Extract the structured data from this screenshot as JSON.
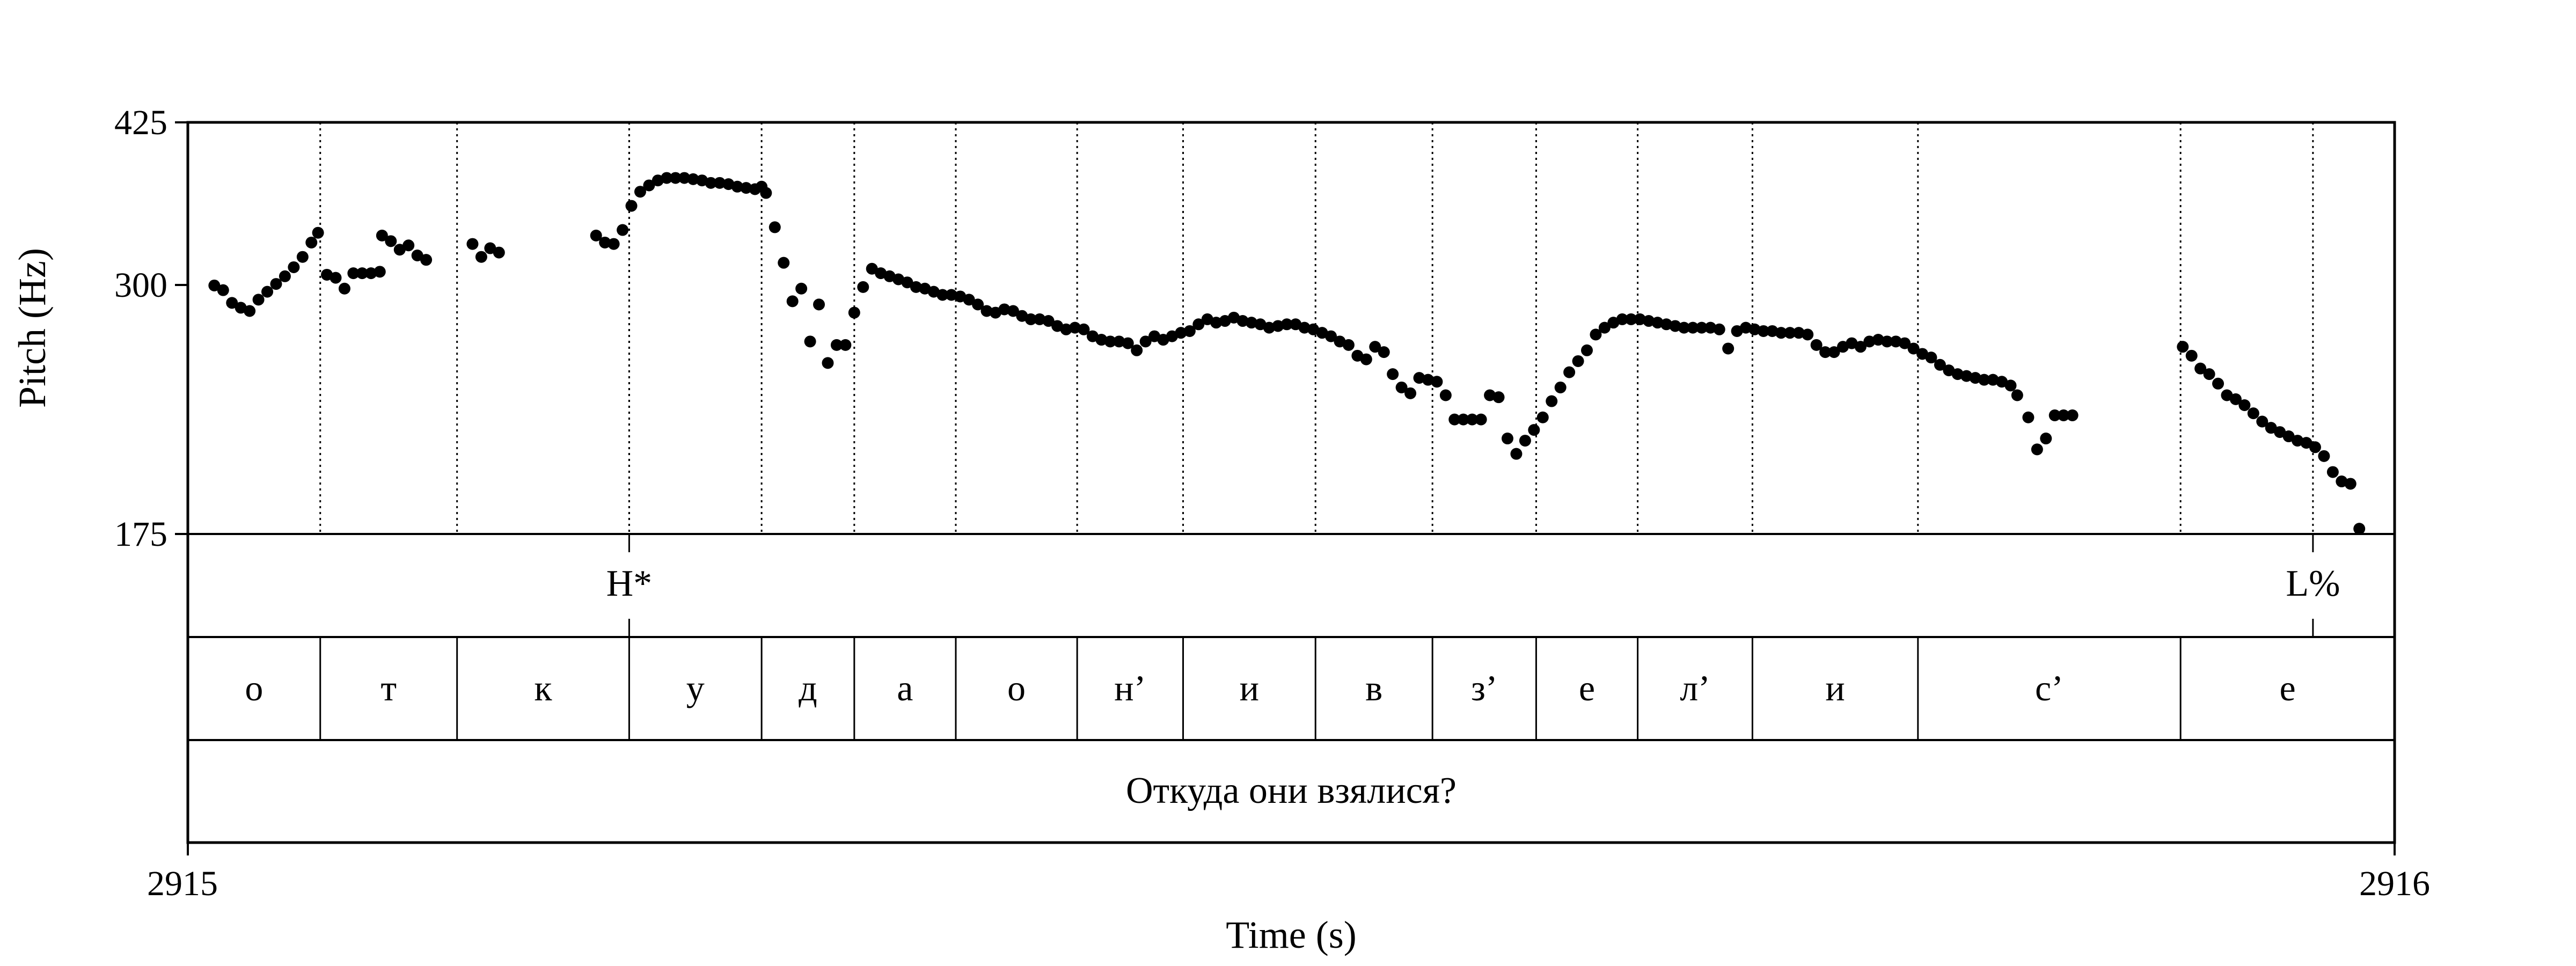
{
  "chart_data": {
    "type": "scatter",
    "title": "",
    "xlabel": "Time (s)",
    "ylabel": "Pitch (Hz)",
    "xlim": [
      2915,
      2916
    ],
    "ylim": [
      175,
      425
    ],
    "x_ticks": [
      "2915",
      "2916"
    ],
    "y_ticks": [
      {
        "value": 175,
        "label": "175"
      },
      {
        "value": 300,
        "label": "300"
      },
      {
        "value": 425,
        "label": "425"
      }
    ],
    "grid": false,
    "tone_tier": [
      {
        "time": 0.2,
        "label": "H*"
      },
      {
        "time": 0.963,
        "label": "L%"
      }
    ],
    "segment_boundaries": [
      0.06,
      0.122,
      0.2,
      0.26,
      0.302,
      0.348,
      0.403,
      0.451,
      0.511,
      0.564,
      0.611,
      0.657,
      0.709,
      0.784,
      0.903
    ],
    "segment_tier": [
      "о",
      "т",
      "к",
      "у",
      "д",
      "а",
      "о",
      "н’",
      "и",
      "в",
      "з’",
      "е",
      "л’",
      "и",
      "с’",
      "е"
    ],
    "phrase_tier": [
      "Откуда они взялися?"
    ],
    "colors": {
      "points": "#000000",
      "lines": "#000000"
    },
    "pitch_points": [
      [
        0.012,
        299
      ],
      [
        0.016,
        296
      ],
      [
        0.02,
        288
      ],
      [
        0.024,
        285
      ],
      [
        0.028,
        283
      ],
      [
        0.032,
        290
      ],
      [
        0.036,
        295
      ],
      [
        0.04,
        300
      ],
      [
        0.044,
        305
      ],
      [
        0.048,
        311
      ],
      [
        0.052,
        318
      ],
      [
        0.056,
        328
      ],
      [
        0.059,
        335
      ],
      [
        0.063,
        306
      ],
      [
        0.067,
        304
      ],
      [
        0.071,
        297
      ],
      [
        0.075,
        307
      ],
      [
        0.079,
        307
      ],
      [
        0.083,
        307
      ],
      [
        0.087,
        308
      ],
      [
        0.088,
        333
      ],
      [
        0.092,
        329
      ],
      [
        0.096,
        323
      ],
      [
        0.1,
        326
      ],
      [
        0.104,
        319
      ],
      [
        0.108,
        316
      ],
      [
        0.129,
        327
      ],
      [
        0.133,
        318
      ],
      [
        0.137,
        324
      ],
      [
        0.141,
        321
      ],
      [
        0.185,
        333
      ],
      [
        0.189,
        328
      ],
      [
        0.193,
        327
      ],
      [
        0.197,
        337
      ],
      [
        0.201,
        355
      ],
      [
        0.205,
        366
      ],
      [
        0.209,
        371
      ],
      [
        0.213,
        375
      ],
      [
        0.217,
        377
      ],
      [
        0.221,
        377
      ],
      [
        0.225,
        377
      ],
      [
        0.229,
        376
      ],
      [
        0.233,
        375
      ],
      [
        0.237,
        373
      ],
      [
        0.241,
        373
      ],
      [
        0.245,
        372
      ],
      [
        0.249,
        370
      ],
      [
        0.253,
        369
      ],
      [
        0.257,
        368
      ],
      [
        0.26,
        370
      ],
      [
        0.262,
        365
      ],
      [
        0.266,
        339
      ],
      [
        0.27,
        314
      ],
      [
        0.274,
        289
      ],
      [
        0.278,
        297
      ],
      [
        0.282,
        265
      ],
      [
        0.286,
        287
      ],
      [
        0.29,
        253
      ],
      [
        0.294,
        263
      ],
      [
        0.298,
        263
      ],
      [
        0.302,
        282
      ],
      [
        0.306,
        298
      ],
      [
        0.31,
        310
      ],
      [
        0.314,
        307
      ],
      [
        0.318,
        305
      ],
      [
        0.322,
        303
      ],
      [
        0.326,
        301
      ],
      [
        0.33,
        298
      ],
      [
        0.334,
        297
      ],
      [
        0.338,
        295
      ],
      [
        0.342,
        293
      ],
      [
        0.346,
        293
      ],
      [
        0.35,
        292
      ],
      [
        0.354,
        290
      ],
      [
        0.358,
        287
      ],
      [
        0.362,
        283
      ],
      [
        0.366,
        282
      ],
      [
        0.37,
        284
      ],
      [
        0.374,
        283
      ],
      [
        0.378,
        280
      ],
      [
        0.382,
        278
      ],
      [
        0.386,
        278
      ],
      [
        0.39,
        277
      ],
      [
        0.394,
        274
      ],
      [
        0.398,
        272
      ],
      [
        0.402,
        273
      ],
      [
        0.406,
        272
      ],
      [
        0.41,
        268
      ],
      [
        0.414,
        266
      ],
      [
        0.418,
        265
      ],
      [
        0.422,
        265
      ],
      [
        0.426,
        264
      ],
      [
        0.43,
        260
      ],
      [
        0.434,
        265
      ],
      [
        0.438,
        268
      ],
      [
        0.442,
        266
      ],
      [
        0.446,
        268
      ],
      [
        0.45,
        270
      ],
      [
        0.454,
        271
      ],
      [
        0.458,
        275
      ],
      [
        0.462,
        278
      ],
      [
        0.466,
        276
      ],
      [
        0.47,
        277
      ],
      [
        0.474,
        279
      ],
      [
        0.478,
        277
      ],
      [
        0.482,
        276
      ],
      [
        0.486,
        275
      ],
      [
        0.49,
        273
      ],
      [
        0.494,
        274
      ],
      [
        0.498,
        275
      ],
      [
        0.502,
        275
      ],
      [
        0.506,
        273
      ],
      [
        0.51,
        272
      ],
      [
        0.514,
        270
      ],
      [
        0.518,
        268
      ],
      [
        0.522,
        265
      ],
      [
        0.526,
        263
      ],
      [
        0.53,
        257
      ],
      [
        0.534,
        255
      ],
      [
        0.538,
        262
      ],
      [
        0.542,
        259
      ],
      [
        0.546,
        247
      ],
      [
        0.55,
        240
      ],
      [
        0.554,
        237
      ],
      [
        0.558,
        245
      ],
      [
        0.562,
        244
      ],
      [
        0.566,
        243
      ],
      [
        0.57,
        236
      ],
      [
        0.574,
        224
      ],
      [
        0.578,
        224
      ],
      [
        0.582,
        224
      ],
      [
        0.586,
        224
      ],
      [
        0.59,
        236
      ],
      [
        0.594,
        235
      ],
      [
        0.598,
        215
      ],
      [
        0.602,
        208
      ],
      [
        0.606,
        214
      ],
      [
        0.61,
        219
      ],
      [
        0.614,
        225
      ],
      [
        0.618,
        233
      ],
      [
        0.622,
        240
      ],
      [
        0.626,
        248
      ],
      [
        0.63,
        254
      ],
      [
        0.634,
        260
      ],
      [
        0.638,
        269
      ],
      [
        0.642,
        273
      ],
      [
        0.646,
        276
      ],
      [
        0.65,
        278
      ],
      [
        0.654,
        278
      ],
      [
        0.658,
        278
      ],
      [
        0.662,
        277
      ],
      [
        0.666,
        276
      ],
      [
        0.67,
        275
      ],
      [
        0.674,
        274
      ],
      [
        0.678,
        273
      ],
      [
        0.682,
        273
      ],
      [
        0.686,
        273
      ],
      [
        0.69,
        273
      ],
      [
        0.694,
        272
      ],
      [
        0.698,
        261
      ],
      [
        0.702,
        271
      ],
      [
        0.706,
        273
      ],
      [
        0.71,
        272
      ],
      [
        0.714,
        271
      ],
      [
        0.718,
        271
      ],
      [
        0.722,
        270
      ],
      [
        0.726,
        270
      ],
      [
        0.73,
        270
      ],
      [
        0.734,
        269
      ],
      [
        0.738,
        263
      ],
      [
        0.742,
        259
      ],
      [
        0.746,
        259
      ],
      [
        0.75,
        262
      ],
      [
        0.754,
        264
      ],
      [
        0.758,
        262
      ],
      [
        0.762,
        265
      ],
      [
        0.766,
        266
      ],
      [
        0.77,
        265
      ],
      [
        0.774,
        265
      ],
      [
        0.778,
        264
      ],
      [
        0.782,
        261
      ],
      [
        0.786,
        258
      ],
      [
        0.79,
        256
      ],
      [
        0.794,
        252
      ],
      [
        0.798,
        249
      ],
      [
        0.802,
        247
      ],
      [
        0.806,
        246
      ],
      [
        0.81,
        245
      ],
      [
        0.814,
        244
      ],
      [
        0.818,
        244
      ],
      [
        0.822,
        243
      ],
      [
        0.826,
        241
      ],
      [
        0.829,
        236
      ],
      [
        0.834,
        225
      ],
      [
        0.838,
        210
      ],
      [
        0.842,
        215
      ],
      [
        0.846,
        226
      ],
      [
        0.85,
        226
      ],
      [
        0.854,
        226
      ],
      [
        0.904,
        262
      ],
      [
        0.908,
        257
      ],
      [
        0.912,
        250
      ],
      [
        0.916,
        247
      ],
      [
        0.92,
        242
      ],
      [
        0.924,
        236
      ],
      [
        0.928,
        234
      ],
      [
        0.932,
        231
      ],
      [
        0.936,
        227
      ],
      [
        0.94,
        223
      ],
      [
        0.944,
        220
      ],
      [
        0.948,
        218
      ],
      [
        0.952,
        216
      ],
      [
        0.956,
        214
      ],
      [
        0.96,
        213
      ],
      [
        0.964,
        211
      ],
      [
        0.968,
        207
      ],
      [
        0.972,
        200
      ],
      [
        0.976,
        196
      ],
      [
        0.98,
        195
      ],
      [
        0.984,
        177
      ]
    ]
  }
}
